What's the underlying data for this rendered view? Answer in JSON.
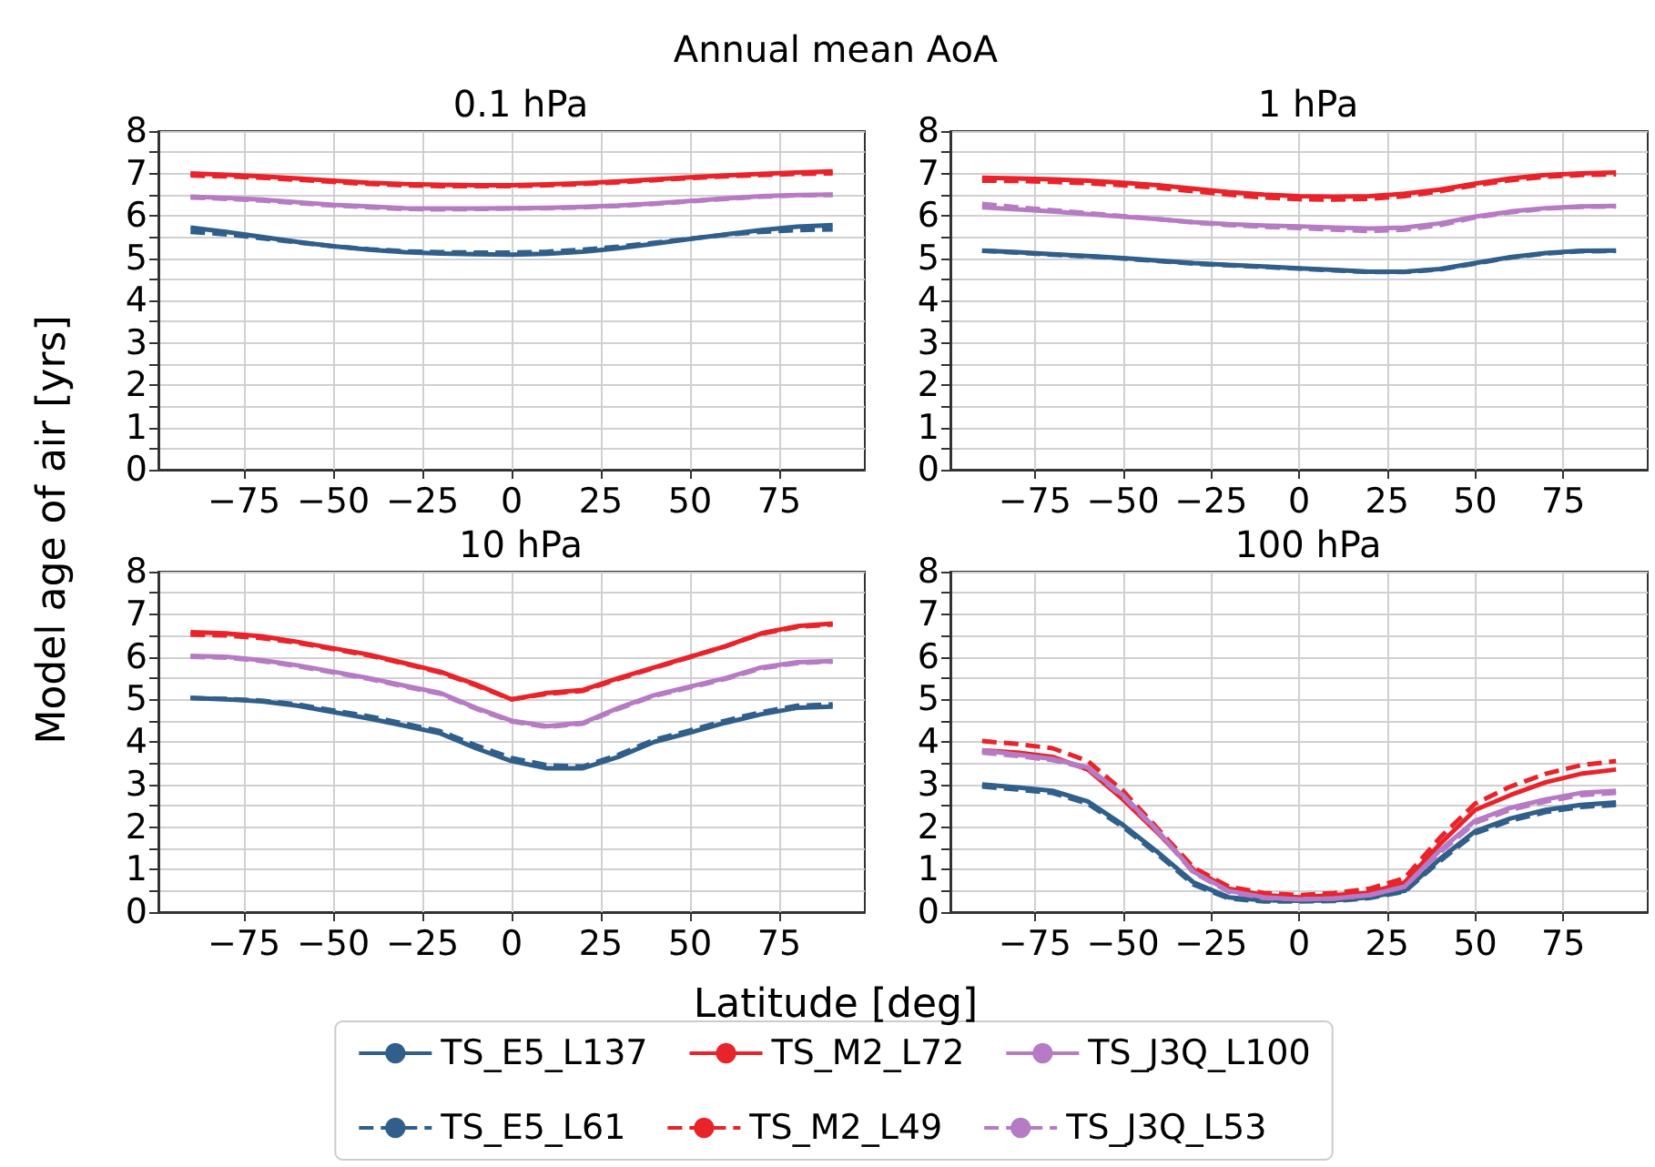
{
  "chart_data": [
    {
      "type": "line",
      "title": "0.1 hPa",
      "ylabel": "Model age of air [yrs]",
      "annotations": [
        "Annual mean AoA"
      ],
      "legend": "bottom",
      "grid": true,
      "marker": "none",
      "xlim": [
        -99,
        99
      ],
      "ylim": [
        0,
        8
      ],
      "xticks": [
        {
          "value": -75,
          "label": "−75"
        },
        {
          "value": -50,
          "label": "−50"
        },
        {
          "value": -25,
          "label": "−25"
        },
        0,
        25,
        50,
        75
      ],
      "yticks": [
        0,
        {
          "value": 0.5,
          "label": null
        },
        1,
        {
          "value": 1.5,
          "label": null
        },
        2,
        {
          "value": 2.5,
          "label": null
        },
        3,
        {
          "value": 3.5,
          "label": null
        },
        4,
        {
          "value": 4.5,
          "label": null
        },
        5,
        {
          "value": 5.5,
          "label": null
        },
        6,
        {
          "value": 6.5,
          "label": null
        },
        7,
        {
          "value": 7.5,
          "label": null
        },
        8
      ],
      "x": [
        -90,
        -80,
        -70,
        -60,
        -50,
        -40,
        -30,
        -20,
        -10,
        0,
        10,
        20,
        30,
        40,
        50,
        60,
        70,
        80,
        90
      ],
      "series": [
        {
          "name": "TS_E5_L137",
          "color": "#2f5f8a",
          "line_style": "solid",
          "values": [
            5.72,
            5.62,
            5.5,
            5.38,
            5.28,
            5.2,
            5.14,
            5.11,
            5.09,
            5.08,
            5.1,
            5.15,
            5.23,
            5.34,
            5.45,
            5.56,
            5.66,
            5.74,
            5.78
          ]
        },
        {
          "name": "TS_E5_L61",
          "color": "#2f5f8a",
          "line_style": "dashed",
          "values": [
            5.62,
            5.56,
            5.47,
            5.37,
            5.28,
            5.21,
            5.16,
            5.14,
            5.13,
            5.13,
            5.15,
            5.2,
            5.27,
            5.36,
            5.46,
            5.55,
            5.62,
            5.66,
            5.68
          ]
        },
        {
          "name": "TS_M2_L72",
          "color": "#e8232a",
          "line_style": "solid",
          "values": [
            7.0,
            6.97,
            6.93,
            6.88,
            6.83,
            6.78,
            6.75,
            6.73,
            6.72,
            6.72,
            6.74,
            6.77,
            6.81,
            6.86,
            6.91,
            6.95,
            6.99,
            7.02,
            7.05
          ]
        },
        {
          "name": "TS_M2_L49",
          "color": "#e8232a",
          "line_style": "dashed",
          "values": [
            6.95,
            6.93,
            6.9,
            6.85,
            6.8,
            6.75,
            6.72,
            6.7,
            6.7,
            6.7,
            6.72,
            6.75,
            6.79,
            6.84,
            6.89,
            6.93,
            6.96,
            6.99,
            7.0
          ]
        },
        {
          "name": "TS_J3Q_L100",
          "color": "#b77ac4",
          "line_style": "solid",
          "values": [
            6.45,
            6.42,
            6.38,
            6.32,
            6.26,
            6.22,
            6.18,
            6.17,
            6.17,
            6.18,
            6.19,
            6.21,
            6.24,
            6.29,
            6.35,
            6.41,
            6.46,
            6.49,
            6.5
          ]
        },
        {
          "name": "TS_J3Q_L53",
          "color": "#b77ac4",
          "line_style": "dashed",
          "values": [
            6.43,
            6.4,
            6.36,
            6.3,
            6.24,
            6.2,
            6.16,
            6.15,
            6.16,
            6.17,
            6.18,
            6.2,
            6.23,
            6.28,
            6.34,
            6.4,
            6.45,
            6.48,
            6.49
          ]
        }
      ]
    },
    {
      "type": "line",
      "title": "1 hPa",
      "grid": true,
      "marker": "none",
      "xlim": [
        -99,
        99
      ],
      "ylim": [
        0,
        8
      ],
      "xticks": [
        {
          "value": -75,
          "label": "−75"
        },
        {
          "value": -50,
          "label": "−50"
        },
        {
          "value": -25,
          "label": "−25"
        },
        0,
        25,
        50,
        75
      ],
      "yticks": [
        0,
        {
          "value": 0.5,
          "label": null
        },
        1,
        {
          "value": 1.5,
          "label": null
        },
        2,
        {
          "value": 2.5,
          "label": null
        },
        3,
        {
          "value": 3.5,
          "label": null
        },
        4,
        {
          "value": 4.5,
          "label": null
        },
        5,
        {
          "value": 5.5,
          "label": null
        },
        6,
        {
          "value": 6.5,
          "label": null
        },
        7,
        {
          "value": 7.5,
          "label": null
        },
        8
      ],
      "x": [
        -90,
        -80,
        -70,
        -60,
        -50,
        -40,
        -30,
        -20,
        -10,
        0,
        10,
        20,
        30,
        40,
        50,
        60,
        70,
        80,
        90
      ],
      "series": [
        {
          "color": "#2f5f8a",
          "line_style": "solid",
          "values": [
            5.18,
            5.14,
            5.09,
            5.05,
            5.0,
            4.94,
            4.88,
            4.84,
            4.8,
            4.76,
            4.72,
            4.68,
            4.68,
            4.74,
            4.88,
            5.02,
            5.12,
            5.17,
            5.18
          ]
        },
        {
          "color": "#2f5f8a",
          "line_style": "dashed",
          "values": [
            5.17,
            5.13,
            5.08,
            5.04,
            4.99,
            4.93,
            4.87,
            4.83,
            4.79,
            4.75,
            4.71,
            4.67,
            4.67,
            4.73,
            4.87,
            5.01,
            5.11,
            5.16,
            5.17
          ]
        },
        {
          "color": "#e8232a",
          "line_style": "solid",
          "values": [
            6.9,
            6.88,
            6.86,
            6.83,
            6.78,
            6.72,
            6.64,
            6.56,
            6.5,
            6.46,
            6.45,
            6.46,
            6.52,
            6.62,
            6.76,
            6.88,
            6.96,
            7.0,
            7.02
          ]
        },
        {
          "color": "#e8232a",
          "line_style": "dashed",
          "values": [
            6.83,
            6.82,
            6.8,
            6.77,
            6.72,
            6.66,
            6.58,
            6.5,
            6.43,
            6.39,
            6.38,
            6.4,
            6.46,
            6.58,
            6.72,
            6.84,
            6.92,
            6.96,
            6.98
          ]
        },
        {
          "color": "#b77ac4",
          "line_style": "solid",
          "values": [
            6.2,
            6.15,
            6.1,
            6.04,
            5.98,
            5.92,
            5.85,
            5.8,
            5.77,
            5.75,
            5.72,
            5.7,
            5.72,
            5.82,
            5.98,
            6.1,
            6.18,
            6.22,
            6.23
          ]
        },
        {
          "color": "#b77ac4",
          "line_style": "dashed",
          "values": [
            6.28,
            6.2,
            6.13,
            6.06,
            5.99,
            5.92,
            5.84,
            5.78,
            5.74,
            5.71,
            5.67,
            5.64,
            5.67,
            5.78,
            5.96,
            6.08,
            6.17,
            6.21,
            6.22
          ]
        }
      ]
    },
    {
      "type": "line",
      "title": "10 hPa",
      "xlabel": "Latitude [deg]",
      "grid": true,
      "marker": "none",
      "xlim": [
        -99,
        99
      ],
      "ylim": [
        0,
        8
      ],
      "xticks": [
        {
          "value": -75,
          "label": "−75"
        },
        {
          "value": -50,
          "label": "−50"
        },
        {
          "value": -25,
          "label": "−25"
        },
        0,
        25,
        50,
        75
      ],
      "yticks": [
        0,
        {
          "value": 0.5,
          "label": null
        },
        1,
        {
          "value": 1.5,
          "label": null
        },
        2,
        {
          "value": 2.5,
          "label": null
        },
        3,
        {
          "value": 3.5,
          "label": null
        },
        4,
        {
          "value": 4.5,
          "label": null
        },
        5,
        {
          "value": 5.5,
          "label": null
        },
        6,
        {
          "value": 6.5,
          "label": null
        },
        7,
        {
          "value": 7.5,
          "label": null
        },
        8
      ],
      "x": [
        -90,
        -80,
        -70,
        -60,
        -50,
        -40,
        -30,
        -20,
        -10,
        0,
        10,
        20,
        30,
        40,
        50,
        60,
        70,
        80,
        90
      ],
      "series": [
        {
          "color": "#2f5f8a",
          "line_style": "solid",
          "values": [
            5.03,
            5.0,
            4.95,
            4.85,
            4.7,
            4.55,
            4.38,
            4.2,
            3.85,
            3.55,
            3.38,
            3.38,
            3.65,
            4.0,
            4.22,
            4.45,
            4.65,
            4.8,
            4.83
          ]
        },
        {
          "color": "#2f5f8a",
          "line_style": "dashed",
          "values": [
            5.03,
            5.01,
            4.97,
            4.88,
            4.74,
            4.6,
            4.43,
            4.25,
            3.92,
            3.62,
            3.45,
            3.42,
            3.7,
            4.05,
            4.27,
            4.5,
            4.7,
            4.85,
            4.88
          ]
        },
        {
          "color": "#e8232a",
          "line_style": "solid",
          "values": [
            6.58,
            6.55,
            6.48,
            6.35,
            6.2,
            6.05,
            5.85,
            5.65,
            5.35,
            5.0,
            5.15,
            5.22,
            5.5,
            5.75,
            6.0,
            6.25,
            6.55,
            6.72,
            6.78
          ]
        },
        {
          "color": "#e8232a",
          "line_style": "dashed",
          "values": [
            6.52,
            6.5,
            6.44,
            6.33,
            6.18,
            6.03,
            5.84,
            5.63,
            5.33,
            5.0,
            5.13,
            5.2,
            5.48,
            5.74,
            5.99,
            6.25,
            6.54,
            6.7,
            6.76
          ]
        },
        {
          "color": "#b77ac4",
          "line_style": "solid",
          "values": [
            6.02,
            6.0,
            5.92,
            5.8,
            5.65,
            5.5,
            5.32,
            5.15,
            4.8,
            4.5,
            4.37,
            4.45,
            4.8,
            5.1,
            5.3,
            5.5,
            5.75,
            5.87,
            5.9
          ]
        },
        {
          "color": "#b77ac4",
          "line_style": "dashed",
          "values": [
            6.0,
            5.98,
            5.9,
            5.78,
            5.63,
            5.48,
            5.3,
            5.13,
            4.78,
            4.48,
            4.35,
            4.43,
            4.78,
            5.08,
            5.28,
            5.48,
            5.73,
            5.85,
            5.89
          ]
        }
      ]
    },
    {
      "type": "line",
      "title": "100 hPa",
      "grid": true,
      "marker": "none",
      "xlim": [
        -99,
        99
      ],
      "ylim": [
        0,
        8
      ],
      "xticks": [
        {
          "value": -75,
          "label": "−75"
        },
        {
          "value": -50,
          "label": "−50"
        },
        {
          "value": -25,
          "label": "−25"
        },
        0,
        25,
        50,
        75
      ],
      "yticks": [
        0,
        {
          "value": 0.5,
          "label": null
        },
        1,
        {
          "value": 1.5,
          "label": null
        },
        2,
        {
          "value": 2.5,
          "label": null
        },
        3,
        {
          "value": 3.5,
          "label": null
        },
        4,
        {
          "value": 4.5,
          "label": null
        },
        5,
        {
          "value": 5.5,
          "label": null
        },
        6,
        {
          "value": 6.5,
          "label": null
        },
        7,
        {
          "value": 7.5,
          "label": null
        },
        8
      ],
      "x": [
        -90,
        -80,
        -70,
        -60,
        -50,
        -40,
        -30,
        -20,
        -10,
        0,
        10,
        20,
        30,
        40,
        50,
        60,
        70,
        80,
        90
      ],
      "series": [
        {
          "color": "#2f5f8a",
          "line_style": "solid",
          "values": [
            3.0,
            2.93,
            2.85,
            2.6,
            2.05,
            1.4,
            0.7,
            0.35,
            0.28,
            0.27,
            0.28,
            0.35,
            0.5,
            1.25,
            1.9,
            2.2,
            2.4,
            2.52,
            2.58
          ]
        },
        {
          "color": "#2f5f8a",
          "line_style": "dashed",
          "values": [
            2.95,
            2.88,
            2.8,
            2.55,
            2.0,
            1.35,
            0.65,
            0.32,
            0.25,
            0.25,
            0.26,
            0.33,
            0.48,
            1.2,
            1.85,
            2.15,
            2.35,
            2.47,
            2.52
          ]
        },
        {
          "color": "#e8232a",
          "line_style": "solid",
          "values": [
            3.8,
            3.75,
            3.65,
            3.35,
            2.65,
            1.85,
            1.0,
            0.55,
            0.4,
            0.35,
            0.4,
            0.45,
            0.7,
            1.6,
            2.4,
            2.75,
            3.05,
            3.25,
            3.35
          ]
        },
        {
          "color": "#e8232a",
          "line_style": "dashed",
          "values": [
            4.02,
            3.95,
            3.85,
            3.55,
            2.85,
            1.95,
            1.05,
            0.6,
            0.45,
            0.4,
            0.45,
            0.55,
            0.8,
            1.75,
            2.55,
            2.95,
            3.25,
            3.45,
            3.55
          ]
        },
        {
          "color": "#b77ac4",
          "line_style": "solid",
          "values": [
            3.8,
            3.7,
            3.6,
            3.4,
            2.75,
            1.9,
            0.95,
            0.5,
            0.35,
            0.3,
            0.32,
            0.4,
            0.6,
            1.45,
            2.15,
            2.45,
            2.65,
            2.8,
            2.85
          ]
        },
        {
          "color": "#b77ac4",
          "line_style": "dashed",
          "values": [
            3.75,
            3.67,
            3.57,
            3.38,
            2.72,
            1.88,
            0.93,
            0.48,
            0.33,
            0.3,
            0.32,
            0.4,
            0.6,
            1.4,
            2.1,
            2.4,
            2.6,
            2.75,
            2.8
          ]
        }
      ]
    }
  ]
}
